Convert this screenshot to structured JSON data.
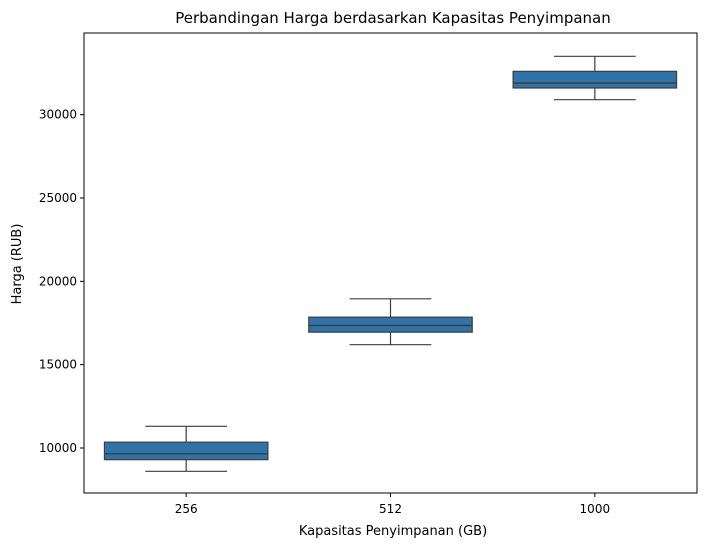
{
  "chart_data": {
    "type": "box",
    "title": "Perbandingan Harga berdasarkan Kapasitas Penyimpanan",
    "xlabel": "Kapasitas Penyimpanan (GB)",
    "ylabel": "Harga (RUB)",
    "categories": [
      "256",
      "512",
      "1000"
    ],
    "boxes": [
      {
        "category": "256",
        "whisker_low": 8600,
        "q1": 9300,
        "median": 9650,
        "q3": 10350,
        "whisker_high": 11300
      },
      {
        "category": "512",
        "whisker_low": 16200,
        "q1": 16950,
        "median": 17350,
        "q3": 17850,
        "whisker_high": 18950
      },
      {
        "category": "1000",
        "whisker_low": 30900,
        "q1": 31600,
        "median": 31900,
        "q3": 32600,
        "whisker_high": 33500
      }
    ],
    "ylim": [
      7300,
      34900
    ],
    "yticks": [
      10000,
      15000,
      20000,
      25000,
      30000
    ],
    "ytick_labels": [
      "10000",
      "15000",
      "20000",
      "25000",
      "30000"
    ],
    "grid": false,
    "colors": {
      "box_fill": "#2f74a8",
      "line": "#3d3d3d",
      "axis": "#000000"
    }
  }
}
